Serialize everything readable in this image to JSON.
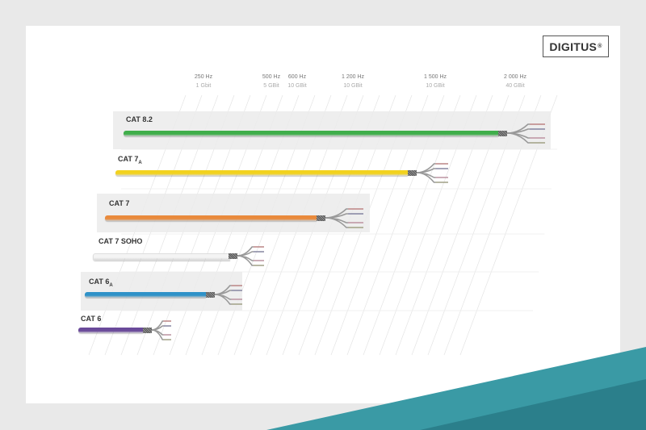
{
  "brand": {
    "name": "DIGITUS",
    "mark": "®"
  },
  "frequencies": [
    {
      "hz": "250 Hz",
      "rate": "1 Gbit"
    },
    {
      "hz": "500 Hz",
      "rate": "5 GBit"
    },
    {
      "hz": "600 Hz",
      "rate": "10 GBit"
    },
    {
      "hz": "1 200 Hz",
      "rate": "10 GBit"
    },
    {
      "hz": "1 500 Hz",
      "rate": "10 GBit"
    },
    {
      "hz": "2 000 Hz",
      "rate": "40 GBit"
    }
  ],
  "cables": [
    {
      "label": "CAT 8.2",
      "sub": "",
      "color": "#3fae4a",
      "frequency": "2 000 Hz"
    },
    {
      "label": "CAT 7",
      "sub": "A",
      "color": "#f2d21e",
      "frequency": "1 500 Hz"
    },
    {
      "label": "CAT 7",
      "sub": "",
      "color": "#e98a3c",
      "frequency": "1 200 Hz"
    },
    {
      "label": "CAT 7 SOHO",
      "sub": "",
      "color": "#f4f4f4",
      "frequency": "600 Hz"
    },
    {
      "label": "CAT 6",
      "sub": "A",
      "color": "#2f92c8",
      "frequency": "500 Hz"
    },
    {
      "label": "CAT 6",
      "sub": "",
      "color": "#6a4a9a",
      "frequency": "250 Hz"
    }
  ],
  "colors": {
    "background": "#e9e9e9",
    "panel": "#ffffff",
    "teal": "#2f8f9a"
  }
}
